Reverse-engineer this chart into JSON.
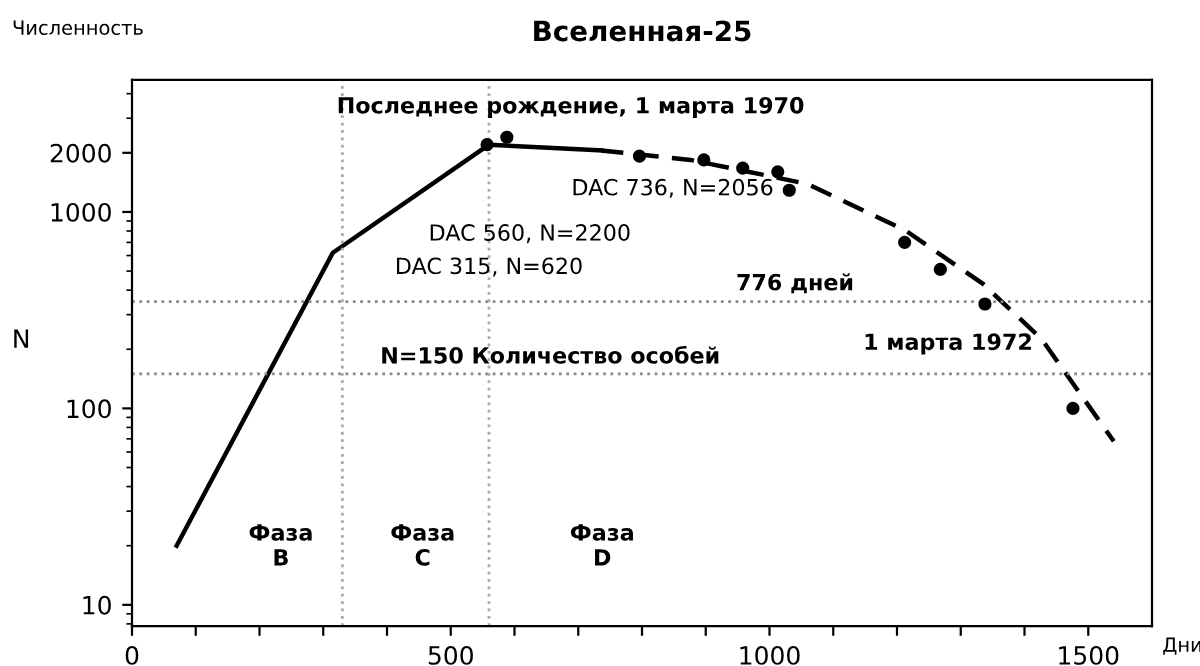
{
  "chart_data": {
    "type": "line",
    "title": "Вселенная-25",
    "xlabel": "Дни",
    "ylabel": "N",
    "log": "y",
    "xlim": [
      0,
      1600
    ],
    "ylim": [
      7.8,
      4700
    ],
    "xticks": [
      0,
      {
        "value": 100,
        "label": null
      },
      {
        "value": 200,
        "label": null
      },
      {
        "value": 300,
        "label": null
      },
      {
        "value": 400,
        "label": null
      },
      500,
      {
        "value": 600,
        "label": null
      },
      {
        "value": 700,
        "label": null
      },
      {
        "value": 800,
        "label": null
      },
      {
        "value": 900,
        "label": null
      },
      1000,
      {
        "value": 1100,
        "label": null
      },
      {
        "value": 1200,
        "label": null
      },
      {
        "value": 1300,
        "label": null
      },
      {
        "value": 1400,
        "label": null
      },
      1500
    ],
    "yticks": [
      10,
      100,
      1000,
      2000
    ],
    "grid": false,
    "legend": false,
    "series": [
      {
        "color": "#000000",
        "line_style": "solid",
        "marker": "none",
        "x": [
          70,
          315,
          560,
          736
        ],
        "values": [
          20,
          620,
          2200,
          2056
        ]
      },
      {
        "color": "#000000",
        "line_style": "dashed",
        "marker": "none",
        "x": [
          736,
          876,
          1059,
          1212,
          1335,
          1427,
          1540
        ],
        "values": [
          2056,
          1840,
          1390,
          810,
          430,
          225,
          68
        ]
      },
      {
        "type": "scatter",
        "color": "#000000",
        "marker": "circle",
        "x": [
          557,
          588,
          796,
          897,
          958,
          1013,
          1031,
          1212,
          1268,
          1338,
          1476
        ],
        "values": [
          2200,
          2400,
          1925,
          1840,
          1670,
          1600,
          1290,
          700,
          510,
          340,
          100
        ]
      }
    ],
    "ref_lines": [
      {
        "axis": "y",
        "value": 150,
        "color": "#888888",
        "line_style": "dotted"
      },
      {
        "axis": "y",
        "value": 350,
        "color": "#888888",
        "line_style": "dotted"
      },
      {
        "axis": "x",
        "value": 330,
        "color": "#aaaaaa",
        "line_style": "dotted"
      },
      {
        "axis": "x",
        "value": 560,
        "color": "#aaaaaa",
        "line_style": "dotted"
      }
    ],
    "annotations": [
      "Численность",
      "Последнее рождение, 1 марта 1970",
      "DAC 736, N=2056",
      "DAC 560, N=2200",
      "DAC 315, N=620",
      "776 дней",
      "N=150 Количество особей",
      "1 марта 1972",
      "Фаза\nB",
      "Фаза\nC",
      "Фаза\nD"
    ]
  }
}
